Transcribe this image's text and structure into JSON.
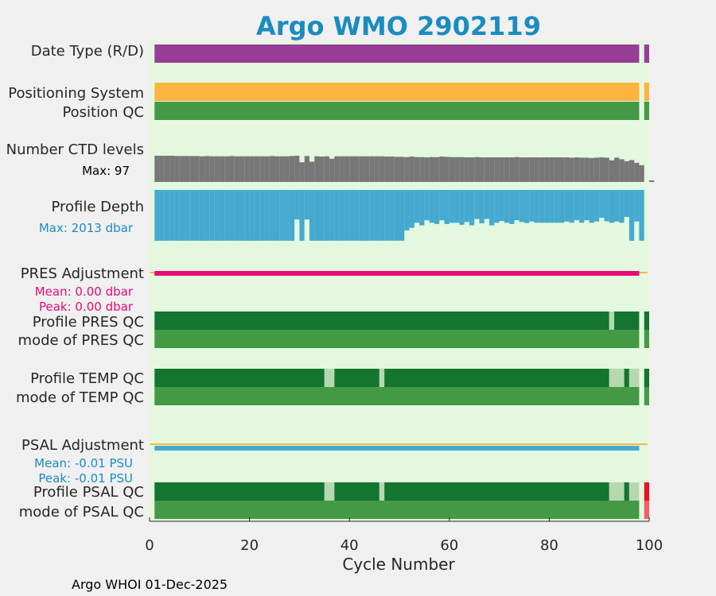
{
  "chart_data": {
    "type": "bar",
    "title": "Argo WMO 2902119",
    "xlabel": "Cycle Number",
    "xlim": [
      0,
      100
    ],
    "xticks": [
      "0",
      "20",
      "40",
      "60",
      "80",
      "100"
    ],
    "footer": "Argo WHOI 01-Dec-2025",
    "colors": {
      "title": "#1a8cc0",
      "plot_bg": "#e3f8de",
      "figure_bg": "#f0f0f0",
      "purple": "#973d97",
      "orange": "#fdb53f",
      "green": "#449944",
      "dark_green": "#137530",
      "light_green": "#b6d8b0",
      "gray": "#777777",
      "blue": "#45a9d0",
      "magenta": "#e8097b",
      "red": "#ee1122",
      "pink_red": "#f35e68",
      "label_blue": "#1a8cc0",
      "label_magenta": "#e8097b"
    },
    "rows": [
      {
        "label": "Date Type (R/D)",
        "segments": [
          {
            "start": 1,
            "end": 97,
            "color": "purple"
          },
          {
            "start": 99,
            "end": 99,
            "color": "purple"
          }
        ]
      },
      {
        "label": "Positioning System",
        "segments": [
          {
            "start": 1,
            "end": 97,
            "color": "orange"
          },
          {
            "start": 99,
            "end": 99,
            "color": "orange"
          }
        ]
      },
      {
        "label": "Position QC",
        "segments": [
          {
            "start": 1,
            "end": 97,
            "color": "green"
          },
          {
            "start": 99,
            "end": 99,
            "color": "green"
          }
        ]
      },
      {
        "label": "Profile PRES QC",
        "segments": [
          {
            "start": 1,
            "end": 91,
            "color": "dark_green"
          },
          {
            "start": 92,
            "end": 92,
            "color": "light_green"
          },
          {
            "start": 93,
            "end": 97,
            "color": "dark_green"
          },
          {
            "start": 99,
            "end": 99,
            "color": "dark_green"
          }
        ]
      },
      {
        "label": "mode of PRES QC",
        "segments": [
          {
            "start": 1,
            "end": 97,
            "color": "green"
          },
          {
            "start": 99,
            "end": 99,
            "color": "green"
          }
        ]
      },
      {
        "label": "Profile TEMP QC",
        "segments": [
          {
            "start": 1,
            "end": 34,
            "color": "dark_green"
          },
          {
            "start": 35,
            "end": 36,
            "color": "light_green"
          },
          {
            "start": 37,
            "end": 45,
            "color": "dark_green"
          },
          {
            "start": 46,
            "end": 46,
            "color": "light_green"
          },
          {
            "start": 47,
            "end": 91,
            "color": "dark_green"
          },
          {
            "start": 92,
            "end": 94,
            "color": "light_green"
          },
          {
            "start": 95,
            "end": 95,
            "color": "dark_green"
          },
          {
            "start": 96,
            "end": 97,
            "color": "light_green"
          },
          {
            "start": 99,
            "end": 99,
            "color": "dark_green"
          }
        ]
      },
      {
        "label": "mode of TEMP QC",
        "segments": [
          {
            "start": 1,
            "end": 97,
            "color": "green"
          },
          {
            "start": 99,
            "end": 99,
            "color": "green"
          }
        ]
      },
      {
        "label": "Profile PSAL QC",
        "segments": [
          {
            "start": 1,
            "end": 34,
            "color": "dark_green"
          },
          {
            "start": 35,
            "end": 36,
            "color": "light_green"
          },
          {
            "start": 37,
            "end": 45,
            "color": "dark_green"
          },
          {
            "start": 46,
            "end": 46,
            "color": "light_green"
          },
          {
            "start": 47,
            "end": 91,
            "color": "dark_green"
          },
          {
            "start": 92,
            "end": 94,
            "color": "light_green"
          },
          {
            "start": 95,
            "end": 95,
            "color": "dark_green"
          },
          {
            "start": 96,
            "end": 97,
            "color": "light_green"
          },
          {
            "start": 99,
            "end": 99,
            "color": "red"
          }
        ]
      },
      {
        "label": "mode of PSAL QC",
        "segments": [
          {
            "start": 1,
            "end": 97,
            "color": "green"
          },
          {
            "start": 99,
            "end": 99,
            "color": "pink_red"
          }
        ]
      }
    ],
    "ctd_levels": {
      "label": "Number CTD levels",
      "max_label": "Max: 97",
      "max": 97,
      "color": "gray",
      "values": [
        97,
        97,
        97,
        97,
        96,
        96,
        96,
        96,
        96,
        95,
        96,
        95,
        95,
        95,
        95,
        96,
        95,
        95,
        95,
        95,
        95,
        95,
        95,
        96,
        95,
        95,
        95,
        96,
        97,
        73,
        96,
        75,
        95,
        94,
        95,
        86,
        95,
        95,
        95,
        95,
        95,
        95,
        95,
        95,
        95,
        95,
        94,
        94,
        93,
        93,
        92,
        94,
        92,
        92,
        91,
        92,
        92,
        94,
        93,
        92,
        92,
        92,
        91,
        91,
        92,
        91,
        91,
        91,
        91,
        91,
        91,
        91,
        92,
        91,
        91,
        91,
        91,
        91,
        91,
        91,
        91,
        91,
        91,
        90,
        91,
        90,
        90,
        89,
        90,
        91,
        90,
        80,
        90,
        84,
        77,
        81,
        71,
        62,
        null,
        6
      ]
    },
    "profile_depth": {
      "label": "Profile Depth",
      "max_label": "Max: 2013 dbar",
      "max": 2013,
      "color": "blue",
      "values": [
        2012,
        2012,
        2010,
        2010,
        2010,
        2011,
        2010,
        2010,
        2011,
        2011,
        2011,
        2010,
        2010,
        2011,
        2011,
        2010,
        2010,
        2011,
        2011,
        2011,
        2011,
        2010,
        2010,
        2010,
        2010,
        2010,
        2010,
        2011,
        1170,
        2013,
        1170,
        2010,
        2011,
        2010,
        2010,
        2010,
        2010,
        2010,
        2010,
        2010,
        2010,
        2010,
        2011,
        2010,
        2010,
        2010,
        2010,
        2010,
        2010,
        2010,
        1600,
        1500,
        1300,
        1400,
        1200,
        1300,
        1350,
        1200,
        1350,
        1300,
        1300,
        1380,
        1270,
        1400,
        1150,
        1320,
        1150,
        1400,
        1300,
        1230,
        1300,
        1350,
        1200,
        1270,
        1310,
        1250,
        1300,
        1300,
        1300,
        1300,
        1300,
        1300,
        1250,
        1300,
        1200,
        1300,
        1200,
        1300,
        1250,
        1100,
        1240,
        1300,
        1250,
        1300,
        1070,
        2013,
        1250,
        2013,
        null,
        null
      ]
    },
    "pres_adjustment": {
      "label": "PRES Adjustment",
      "mean_label": "Mean: 0.00 dbar",
      "peak_label": "Peak: 0.00 dbar",
      "from": 1,
      "to": 97,
      "color": "magenta",
      "line_color": "orange"
    },
    "psal_adjustment": {
      "label": "PSAL Adjustment",
      "mean_label": "Mean: -0.01 PSU",
      "peak_label": "Peak: -0.01 PSU",
      "from": 1,
      "to": 97,
      "color": "blue",
      "line_color": "orange"
    }
  }
}
